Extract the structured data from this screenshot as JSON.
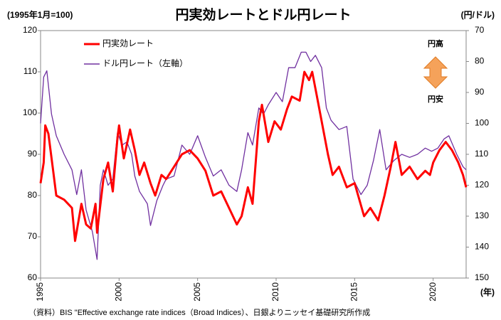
{
  "chart_data": {
    "type": "line",
    "title": "円実効レートとドル円レート",
    "y_label": "(1995年1月=100)",
    "y2_label": "(円/ドル)",
    "x_label": "(年)",
    "source": "（資料）BIS \"Effective exchange rate indices（Broad Indices）、日銀よりニッセイ基礎研究所作成",
    "annotations": [
      "円高",
      "円安"
    ],
    "xlim": [
      1995,
      2022.1
    ],
    "xticks": [
      1995,
      2000,
      2005,
      2010,
      2015,
      2020
    ],
    "ylim": [
      60,
      120
    ],
    "yticks": [
      60,
      70,
      80,
      90,
      100,
      110,
      120
    ],
    "y2lim": [
      150,
      70
    ],
    "y2ticks": [
      70,
      80,
      90,
      100,
      110,
      120,
      130,
      140,
      150
    ],
    "legend": "upper left",
    "series": [
      {
        "name": "円実効レート",
        "color": "#ff0000",
        "x": [
          1995.0,
          1995.2,
          1995.3,
          1995.5,
          1995.8,
          1996.0,
          1996.5,
          1997.0,
          1997.2,
          1997.6,
          1997.9,
          1998.2,
          1998.5,
          1998.6,
          1999.0,
          1999.3,
          1999.6,
          1999.9,
          2000.0,
          2000.3,
          2000.7,
          2001.0,
          2001.3,
          2001.6,
          2002.0,
          2002.3,
          2002.7,
          2003.0,
          2003.5,
          2004.0,
          2004.5,
          2005.0,
          2005.5,
          2006.0,
          2006.5,
          2007.0,
          2007.5,
          2007.8,
          2008.2,
          2008.5,
          2008.9,
          2009.1,
          2009.5,
          2009.9,
          2010.3,
          2010.7,
          2011.0,
          2011.5,
          2011.8,
          2012.1,
          2012.3,
          2012.6,
          2013.0,
          2013.3,
          2013.6,
          2014.0,
          2014.5,
          2015.0,
          2015.6,
          2016.0,
          2016.5,
          2016.9,
          2017.3,
          2017.6,
          2018.0,
          2018.5,
          2019.0,
          2019.5,
          2019.8,
          2020.0,
          2020.4,
          2020.8,
          2021.2,
          2021.6,
          2021.9,
          2022.1
        ],
        "values": [
          83,
          88,
          97,
          95,
          86,
          80,
          79,
          77,
          69,
          78,
          73,
          72,
          78,
          71,
          84,
          88,
          81,
          94,
          97,
          89,
          96,
          91,
          85,
          88,
          83,
          80,
          85,
          84,
          87,
          90,
          91,
          89,
          86,
          80,
          81,
          77,
          73,
          75,
          82,
          78,
          98,
          102,
          93,
          98,
          96,
          101,
          104,
          103,
          110,
          108,
          110,
          104,
          96,
          90,
          85,
          87,
          82,
          83,
          75,
          77,
          74,
          80,
          87,
          93,
          85,
          87,
          84,
          86,
          85,
          88,
          91,
          93,
          91,
          88,
          85,
          82
        ]
      },
      {
        "name": "ドル円レート（左軸）",
        "color": "#7030a0",
        "axis": "y2",
        "x": [
          1995.0,
          1995.2,
          1995.4,
          1995.7,
          1996.0,
          1996.5,
          1997.0,
          1997.3,
          1997.6,
          1997.9,
          1998.3,
          1998.6,
          1998.8,
          1999.0,
          1999.3,
          1999.6,
          1999.9,
          2000.2,
          2000.5,
          2000.8,
          2001.0,
          2001.3,
          2001.8,
          2002.0,
          2002.4,
          2002.8,
          2003.0,
          2003.5,
          2004.0,
          2004.5,
          2005.0,
          2005.5,
          2006.0,
          2006.5,
          2007.0,
          2007.5,
          2007.8,
          2008.2,
          2008.5,
          2008.9,
          2009.2,
          2009.5,
          2010.0,
          2010.4,
          2010.8,
          2011.2,
          2011.6,
          2011.9,
          2012.2,
          2012.5,
          2012.9,
          2013.2,
          2013.5,
          2014.0,
          2014.5,
          2014.9,
          2015.4,
          2015.8,
          2016.2,
          2016.6,
          2017.0,
          2017.5,
          2018.0,
          2018.5,
          2019.0,
          2019.5,
          2019.9,
          2020.3,
          2020.7,
          2021.0,
          2021.5,
          2021.9,
          2022.1
        ],
        "values": [
          100,
          85,
          83,
          97,
          104,
          110,
          115,
          123,
          115,
          128,
          135,
          144,
          120,
          115,
          120,
          118,
          103,
          107,
          106,
          110,
          117,
          122,
          126,
          133,
          125,
          120,
          118,
          117,
          107,
          110,
          104,
          111,
          117,
          115,
          120,
          122,
          115,
          103,
          107,
          95,
          97,
          94,
          90,
          93,
          82,
          82,
          77,
          77,
          80,
          78,
          82,
          95,
          99,
          102,
          101,
          118,
          123,
          120,
          112,
          102,
          115,
          112,
          110,
          111,
          110,
          108,
          109,
          108,
          105,
          104,
          110,
          114,
          115
        ]
      }
    ]
  }
}
